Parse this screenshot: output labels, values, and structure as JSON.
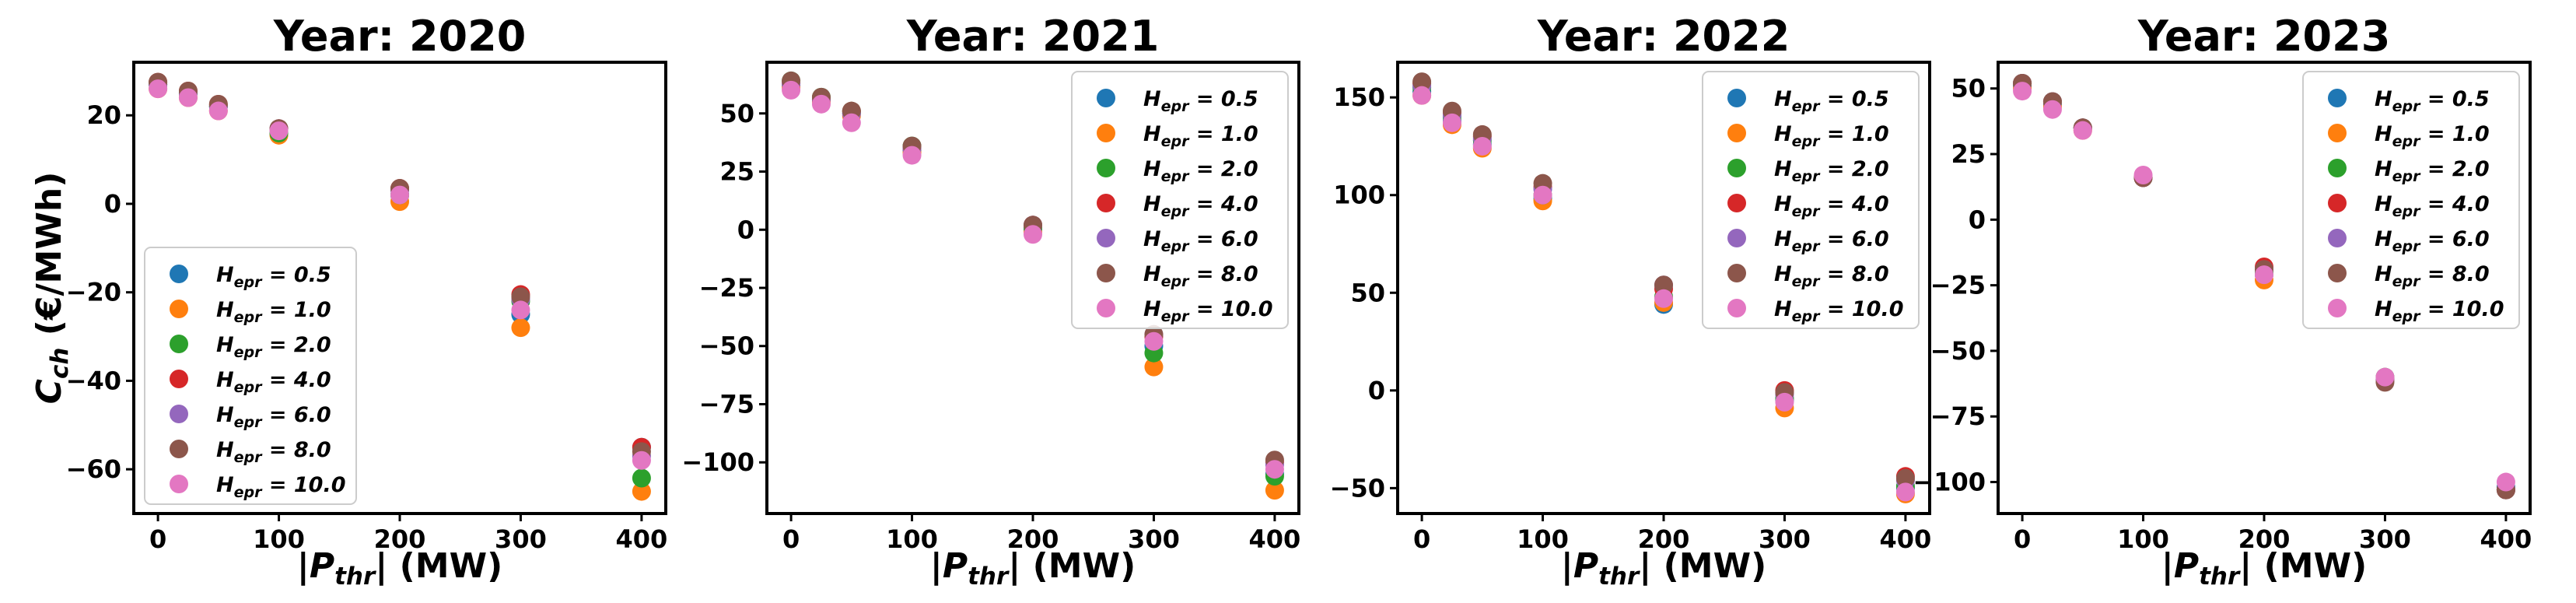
{
  "chart_data": [
    {
      "type": "scatter",
      "title": "Year: 2020",
      "xlabel": "|P_thr| (MW)",
      "ylabel": "C_ch (€/MWh)",
      "xlim": [
        -20,
        420
      ],
      "ylim": [
        -70,
        32
      ],
      "xticks": [
        0,
        100,
        200,
        300,
        400
      ],
      "yticks": [
        20,
        0,
        -20,
        -40,
        -60
      ],
      "legend_position": "center-left",
      "x": [
        0,
        25,
        50,
        100,
        200,
        300,
        400
      ],
      "series": [
        {
          "name": "H_epr = 0.5",
          "color": "#1f77b4",
          "values": [
            27,
            25,
            22,
            16,
            2,
            -25,
            -55
          ]
        },
        {
          "name": "H_epr = 1.0",
          "color": "#ff7f0e",
          "values": [
            26,
            24,
            21,
            15.5,
            0.5,
            -28,
            -65
          ]
        },
        {
          "name": "H_epr = 2.0",
          "color": "#2ca02c",
          "values": [
            27,
            25,
            22,
            16,
            2,
            -22,
            -62
          ]
        },
        {
          "name": "H_epr = 4.0",
          "color": "#d62728",
          "values": [
            27.5,
            25.5,
            22.5,
            17,
            3.5,
            -20.5,
            -55
          ]
        },
        {
          "name": "H_epr = 6.0",
          "color": "#9467bd",
          "values": [
            27,
            25,
            22,
            17,
            3,
            -21.5,
            -57
          ]
        },
        {
          "name": "H_epr = 8.0",
          "color": "#8c564b",
          "values": [
            27.5,
            25.5,
            22.5,
            17,
            3.5,
            -21,
            -56
          ]
        },
        {
          "name": "H_epr = 10.0",
          "color": "#e377c2",
          "values": [
            26,
            24,
            21,
            16.5,
            2,
            -24,
            -58
          ]
        }
      ]
    },
    {
      "type": "scatter",
      "title": "Year: 2021",
      "xlabel": "|P_thr| (MW)",
      "ylabel": "",
      "xlim": [
        -20,
        420
      ],
      "ylim": [
        -122,
        72
      ],
      "xticks": [
        0,
        100,
        200,
        300,
        400
      ],
      "yticks": [
        50,
        25,
        0,
        -25,
        -50,
        -75,
        -100
      ],
      "legend_position": "top-right",
      "x": [
        0,
        25,
        50,
        100,
        200,
        300,
        400
      ],
      "series": [
        {
          "name": "H_epr = 0.5",
          "color": "#1f77b4",
          "values": [
            62,
            56,
            50,
            34,
            0,
            -50,
            -105
          ]
        },
        {
          "name": "H_epr = 1.0",
          "color": "#ff7f0e",
          "values": [
            61,
            55,
            49,
            33,
            -1,
            -59,
            -112
          ]
        },
        {
          "name": "H_epr = 2.0",
          "color": "#2ca02c",
          "values": [
            64,
            57,
            51,
            36,
            1,
            -53,
            -106
          ]
        },
        {
          "name": "H_epr = 4.0",
          "color": "#d62728",
          "values": [
            63,
            56,
            51,
            35,
            2,
            -46,
            -100
          ]
        },
        {
          "name": "H_epr = 6.0",
          "color": "#9467bd",
          "values": [
            63,
            56,
            50,
            35,
            2,
            -45,
            -101
          ]
        },
        {
          "name": "H_epr = 8.0",
          "color": "#8c564b",
          "values": [
            64,
            57,
            51,
            36,
            2,
            -45,
            -99
          ]
        },
        {
          "name": "H_epr = 10.0",
          "color": "#e377c2",
          "values": [
            60,
            54,
            46,
            32,
            -2,
            -48,
            -103
          ]
        }
      ]
    },
    {
      "type": "scatter",
      "title": "Year: 2022",
      "xlabel": "|P_thr| (MW)",
      "ylabel": "",
      "xlim": [
        -20,
        420
      ],
      "ylim": [
        -63,
        168
      ],
      "xticks": [
        0,
        100,
        200,
        300,
        400
      ],
      "yticks": [
        150,
        100,
        50,
        0,
        -50
      ],
      "legend_position": "top-right",
      "x": [
        0,
        25,
        50,
        100,
        200,
        300,
        400
      ],
      "series": [
        {
          "name": "H_epr = 0.5",
          "color": "#1f77b4",
          "values": [
            153,
            138,
            126,
            98,
            44,
            -5,
            -50
          ]
        },
        {
          "name": "H_epr = 1.0",
          "color": "#ff7f0e",
          "values": [
            151,
            136,
            124,
            97,
            45,
            -9,
            -53
          ]
        },
        {
          "name": "H_epr = 2.0",
          "color": "#2ca02c",
          "values": [
            155,
            140,
            128,
            100,
            48,
            -4,
            -49
          ]
        },
        {
          "name": "H_epr = 4.0",
          "color": "#d62728",
          "values": [
            157,
            142,
            130,
            104,
            52,
            0,
            -44
          ]
        },
        {
          "name": "H_epr = 6.0",
          "color": "#9467bd",
          "values": [
            156,
            141,
            129,
            103,
            54,
            -2,
            -46
          ]
        },
        {
          "name": "H_epr = 8.0",
          "color": "#8c564b",
          "values": [
            158,
            143,
            131,
            106,
            54,
            -1,
            -45
          ]
        },
        {
          "name": "H_epr = 10.0",
          "color": "#e377c2",
          "values": [
            151,
            137,
            125,
            100,
            47,
            -6,
            -52
          ]
        }
      ]
    },
    {
      "type": "scatter",
      "title": "Year: 2023",
      "xlabel": "|P_thr| (MW)",
      "ylabel": "",
      "xlim": [
        -20,
        420
      ],
      "ylim": [
        -112,
        60
      ],
      "xticks": [
        0,
        100,
        200,
        300,
        400
      ],
      "yticks": [
        50,
        25,
        0,
        -25,
        -50,
        -75,
        -100
      ],
      "legend_position": "top-right",
      "x": [
        0,
        25,
        50,
        100,
        200,
        300,
        400
      ],
      "series": [
        {
          "name": "H_epr = 0.5",
          "color": "#1f77b4",
          "values": [
            51,
            44,
            35,
            16,
            -21,
            -61,
            -102
          ]
        },
        {
          "name": "H_epr = 1.0",
          "color": "#ff7f0e",
          "values": [
            50,
            43,
            34,
            16,
            -23,
            -61,
            -103
          ]
        },
        {
          "name": "H_epr = 2.0",
          "color": "#2ca02c",
          "values": [
            52,
            45,
            35,
            16,
            -20,
            -60,
            -103
          ]
        },
        {
          "name": "H_epr = 4.0",
          "color": "#d62728",
          "values": [
            52,
            45,
            35,
            16,
            -18,
            -61,
            -103
          ]
        },
        {
          "name": "H_epr = 6.0",
          "color": "#9467bd",
          "values": [
            52,
            45,
            35,
            16,
            -19,
            -61,
            -103
          ]
        },
        {
          "name": "H_epr = 8.0",
          "color": "#8c564b",
          "values": [
            52,
            45,
            35,
            16,
            -19,
            -62,
            -103
          ]
        },
        {
          "name": "H_epr = 10.0",
          "color": "#e377c2",
          "values": [
            49,
            42,
            34,
            17,
            -21,
            -60,
            -100
          ]
        }
      ]
    }
  ],
  "legend": {
    "symbol": "H",
    "subscript": "epr",
    "entries": [
      {
        "label": "H_epr = 0.5",
        "value": "0.5",
        "color": "#1f77b4"
      },
      {
        "label": "H_epr = 1.0",
        "value": "1.0",
        "color": "#ff7f0e"
      },
      {
        "label": "H_epr = 2.0",
        "value": "2.0",
        "color": "#2ca02c"
      },
      {
        "label": "H_epr = 4.0",
        "value": "4.0",
        "color": "#d62728"
      },
      {
        "label": "H_epr = 6.0",
        "value": "6.0",
        "color": "#9467bd"
      },
      {
        "label": "H_epr = 8.0",
        "value": "8.0",
        "color": "#8c564b"
      },
      {
        "label": "H_epr = 10.0",
        "value": "10.0",
        "color": "#e377c2"
      }
    ]
  },
  "axis_labels": {
    "x_symbol": "P",
    "x_subscript": "thr",
    "x_unit": "(MW)",
    "y_symbol": "C",
    "y_subscript": "ch",
    "y_unit": "(€/MWh)"
  }
}
